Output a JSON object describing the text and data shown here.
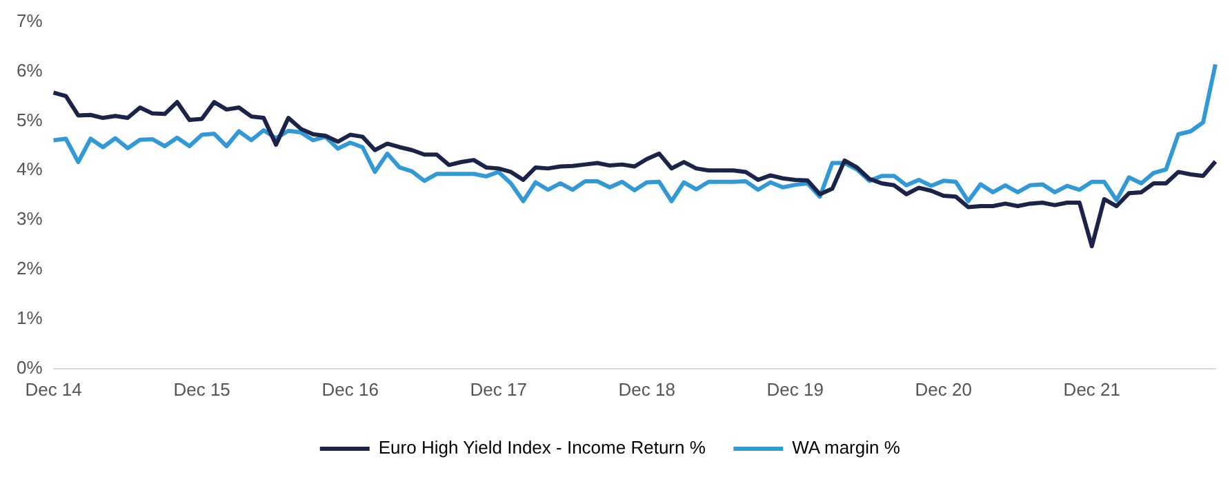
{
  "chart_data": {
    "type": "line",
    "categories": [
      "Dec 14",
      null,
      null,
      null,
      null,
      null,
      null,
      null,
      null,
      null,
      null,
      null,
      "Dec 15",
      null,
      null,
      null,
      null,
      null,
      null,
      null,
      null,
      null,
      null,
      null,
      "Dec 16",
      null,
      null,
      null,
      null,
      null,
      null,
      null,
      null,
      null,
      null,
      null,
      "Dec 17",
      null,
      null,
      null,
      null,
      null,
      null,
      null,
      null,
      null,
      null,
      null,
      "Dec 18",
      null,
      null,
      null,
      null,
      null,
      null,
      null,
      null,
      null,
      null,
      null,
      "Dec 19",
      null,
      null,
      null,
      null,
      null,
      null,
      null,
      null,
      null,
      null,
      null,
      "Dec 20",
      null,
      null,
      null,
      null,
      null,
      null,
      null,
      null,
      null,
      null,
      null,
      "Dec 21",
      null,
      null,
      null,
      null,
      null,
      null,
      null,
      null,
      null,
      null
    ],
    "series": [
      {
        "name": "Euro High Yield Index - Income Return %",
        "color": "#1b2448",
        "values": [
          5.57,
          5.5,
          5.11,
          5.12,
          5.06,
          5.1,
          5.06,
          5.27,
          5.15,
          5.14,
          5.38,
          5.02,
          5.04,
          5.38,
          5.23,
          5.27,
          5.09,
          5.06,
          4.52,
          5.06,
          4.84,
          4.73,
          4.7,
          4.58,
          4.72,
          4.68,
          4.41,
          4.54,
          4.47,
          4.41,
          4.32,
          4.32,
          4.11,
          4.17,
          4.21,
          4.06,
          4.04,
          3.97,
          3.81,
          4.06,
          4.04,
          4.08,
          4.09,
          4.12,
          4.15,
          4.1,
          4.12,
          4.08,
          4.23,
          4.34,
          4.04,
          4.17,
          4.04,
          4.0,
          4.0,
          4.0,
          3.97,
          3.81,
          3.9,
          3.84,
          3.81,
          3.8,
          3.52,
          3.63,
          4.2,
          4.06,
          3.83,
          3.74,
          3.7,
          3.52,
          3.65,
          3.59,
          3.49,
          3.47,
          3.26,
          3.28,
          3.28,
          3.33,
          3.28,
          3.33,
          3.35,
          3.3,
          3.35,
          3.35,
          2.47,
          3.42,
          3.28,
          3.54,
          3.56,
          3.74,
          3.74,
          3.97,
          3.92,
          3.89,
          4.18
        ]
      },
      {
        "name": "WA margin %",
        "color": "#3399d6",
        "values": [
          4.61,
          4.64,
          4.17,
          4.64,
          4.47,
          4.65,
          4.45,
          4.62,
          4.63,
          4.49,
          4.66,
          4.49,
          4.72,
          4.74,
          4.49,
          4.79,
          4.61,
          4.81,
          4.65,
          4.8,
          4.77,
          4.61,
          4.68,
          4.44,
          4.56,
          4.47,
          3.97,
          4.34,
          4.06,
          3.98,
          3.79,
          3.93,
          3.93,
          3.93,
          3.93,
          3.88,
          3.97,
          3.74,
          3.38,
          3.76,
          3.61,
          3.74,
          3.61,
          3.78,
          3.78,
          3.66,
          3.77,
          3.6,
          3.76,
          3.77,
          3.38,
          3.76,
          3.62,
          3.77,
          3.77,
          3.77,
          3.78,
          3.61,
          3.76,
          3.66,
          3.71,
          3.74,
          3.47,
          4.15,
          4.15,
          4.02,
          3.79,
          3.89,
          3.89,
          3.7,
          3.81,
          3.69,
          3.79,
          3.77,
          3.38,
          3.72,
          3.56,
          3.7,
          3.56,
          3.7,
          3.72,
          3.56,
          3.69,
          3.61,
          3.77,
          3.77,
          3.4,
          3.86,
          3.74,
          3.95,
          4.02,
          4.73,
          4.79,
          4.97,
          6.14
        ]
      }
    ],
    "ylim": [
      0,
      7
    ],
    "yticks": [
      {
        "value": 0,
        "label": "0%"
      },
      {
        "value": 1,
        "label": "1%"
      },
      {
        "value": 2,
        "label": "2%"
      },
      {
        "value": 3,
        "label": "3%"
      },
      {
        "value": 4,
        "label": "4%"
      },
      {
        "value": 5,
        "label": "5%"
      },
      {
        "value": 6,
        "label": "6%"
      },
      {
        "value": 7,
        "label": "7%"
      }
    ],
    "legend": "bottom"
  }
}
